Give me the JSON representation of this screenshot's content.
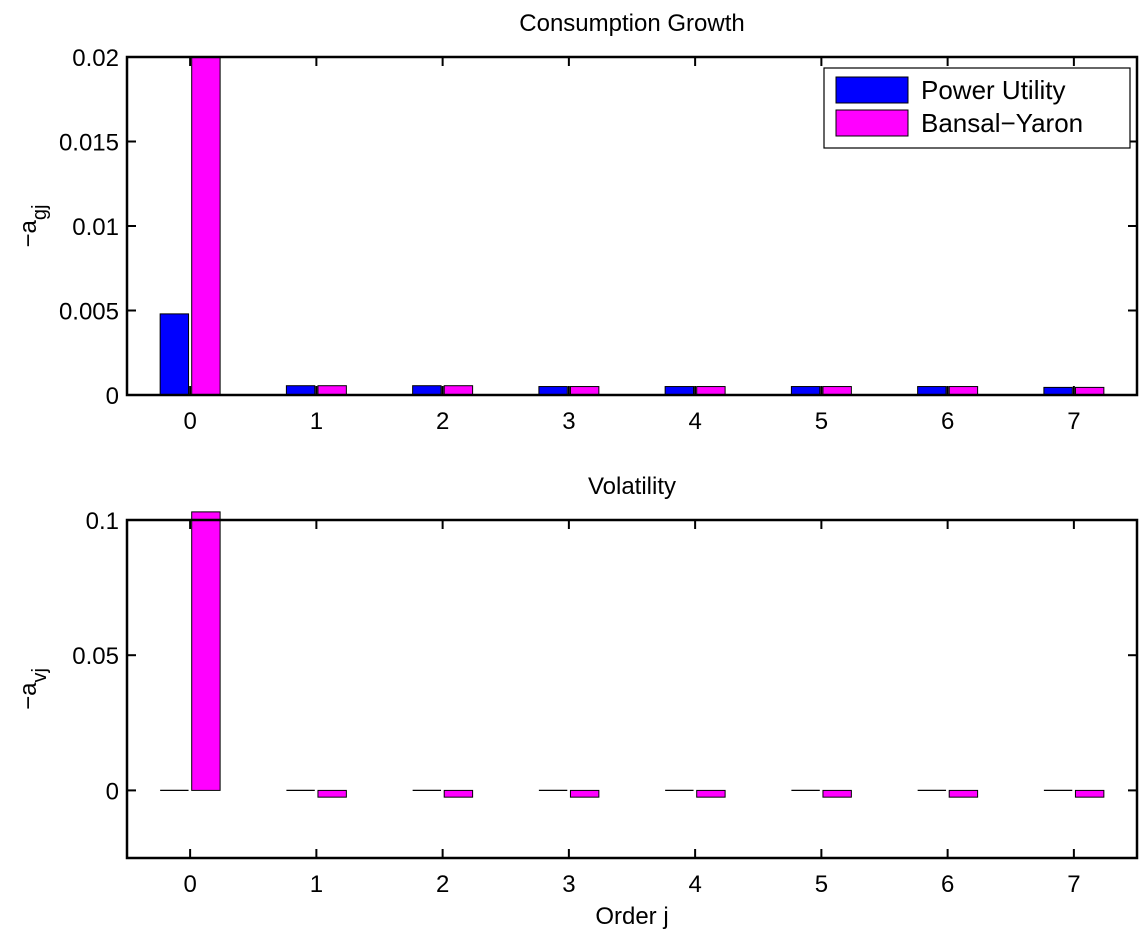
{
  "chart_data": [
    {
      "type": "bar",
      "title": "Consumption Growth",
      "xlabel": "",
      "ylabel": "−a",
      "ylabel_sub": "gj",
      "categories": [
        "0",
        "1",
        "2",
        "3",
        "4",
        "5",
        "6",
        "7"
      ],
      "ylim": [
        0,
        0.02
      ],
      "yticks": [
        0,
        0.005,
        0.01,
        0.015,
        0.02
      ],
      "ytick_labels": [
        "0",
        "0.005",
        "0.01",
        "0.015",
        "0.02"
      ],
      "series": [
        {
          "name": "Power Utility",
          "color": "#0000ff",
          "values": [
            0.0048,
            0.00055,
            0.00055,
            0.0005,
            0.0005,
            0.0005,
            0.0005,
            0.00045
          ]
        },
        {
          "name": "Bansal−Yaron",
          "color": "#ff00ff",
          "values": [
            0.0215,
            0.00055,
            0.00055,
            0.0005,
            0.0005,
            0.0005,
            0.0005,
            0.00045
          ]
        }
      ],
      "legend": "top-right",
      "grid": false
    },
    {
      "type": "bar",
      "title": "Volatility",
      "xlabel": "Order j",
      "ylabel": "−a",
      "ylabel_sub": "vj",
      "categories": [
        "0",
        "1",
        "2",
        "3",
        "4",
        "5",
        "6",
        "7"
      ],
      "ylim": [
        -0.025,
        0.1
      ],
      "yticks": [
        0,
        0.05,
        0.1
      ],
      "ytick_labels": [
        "0",
        "0.05",
        "0.1"
      ],
      "series": [
        {
          "name": "Power Utility",
          "color": "#0000ff",
          "values": [
            0,
            0,
            0,
            0,
            0,
            0,
            0,
            0
          ]
        },
        {
          "name": "Bansal−Yaron",
          "color": "#ff00ff",
          "values": [
            0.103,
            -0.0025,
            -0.0025,
            -0.0025,
            -0.0025,
            -0.0025,
            -0.0025,
            -0.0025
          ]
        }
      ],
      "grid": false
    }
  ]
}
